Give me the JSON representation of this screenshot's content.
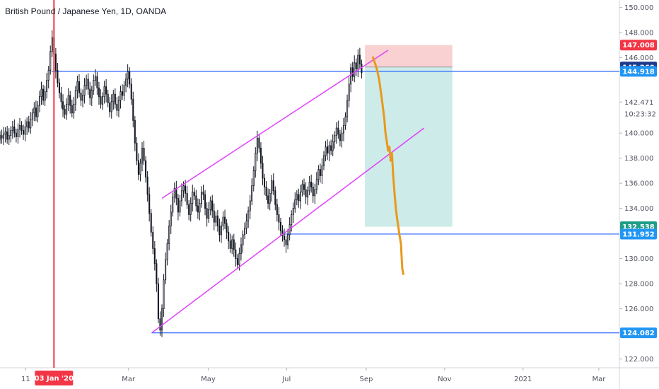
{
  "title": "British Pound / Japanese Yen, 1D, OANDA",
  "colors": {
    "up": "#131722",
    "projection": "#e8991c",
    "channel": "#e040fb",
    "level": "#2962ff",
    "cursor": "#f23645",
    "stop_zone": "#f9d1d2",
    "target_zone": "#cdebe8",
    "badge_blue": "#2196f3",
    "badge_navy": "#1e3a8a",
    "badge_green": "#1f9e89",
    "badge_red": "#f23645"
  },
  "chart_data": {
    "type": "candlestick",
    "ylim": [
      121.3,
      150.6
    ],
    "y_ticks": [
      "150.000",
      "148.000",
      "146.000",
      "142.471",
      "140.000",
      "138.000",
      "136.000",
      "134.000",
      "130.000",
      "128.000",
      "126.000",
      "122.000"
    ],
    "y_tick_values": [
      150,
      148,
      146,
      142.471,
      140,
      138,
      136,
      134,
      130,
      128,
      126,
      122
    ],
    "x_ticks": [
      "11",
      "Mar",
      "May",
      "Jul",
      "Sep",
      "Nov",
      "2021",
      "Mar"
    ],
    "x_tick_days": [
      -20,
      60,
      122,
      183,
      245,
      306,
      367,
      426
    ],
    "x_range_days": [
      -40,
      442
    ],
    "countdown": "10:23:32",
    "cursor": {
      "day": 2,
      "label": "03 Jan '20"
    },
    "price_labels": [
      {
        "value": 147.008,
        "label": "147.008",
        "kind": "red"
      },
      {
        "value": 145.26,
        "label": "145.260",
        "kind": "navy"
      },
      {
        "value": 144.918,
        "label": "144.918",
        "kind": "blue"
      },
      {
        "value": 132.538,
        "label": "132.538",
        "kind": "green"
      },
      {
        "value": 131.952,
        "label": "131.952",
        "kind": "blue"
      },
      {
        "value": 124.082,
        "label": "124.082",
        "kind": "blue"
      }
    ],
    "levels": [
      {
        "value": 144.918,
        "from_day": 0
      },
      {
        "value": 131.952,
        "from_day": 180
      },
      {
        "value": 124.082,
        "from_day": 78
      }
    ],
    "channel": {
      "upper": [
        [
          86,
          134.8
        ],
        [
          262,
          146.6
        ]
      ],
      "lower": [
        [
          78,
          124.08
        ],
        [
          290,
          140.4
        ]
      ]
    },
    "position": {
      "from_day": 244,
      "to_day": 312,
      "entry": 145.26,
      "stop": 147.008,
      "target": 132.538
    },
    "candles_start_day": -40,
    "closes": [
      139.8,
      139.6,
      139.9,
      140.1,
      139.5,
      139.8,
      140.2,
      140.5,
      140.0,
      139.7,
      140.3,
      140.6,
      140.2,
      139.9,
      140.5,
      140.9,
      140.4,
      141.1,
      141.6,
      142.0,
      141.3,
      142.2,
      142.9,
      143.5,
      142.6,
      143.3,
      144.2,
      145.0,
      146.5,
      147.6,
      146.3,
      145.0,
      144.0,
      143.2,
      142.5,
      141.9,
      141.5,
      142.3,
      143.0,
      142.2,
      141.6,
      142.3,
      143.4,
      144.1,
      143.2,
      142.6,
      143.0,
      143.8,
      144.3,
      143.5,
      142.8,
      143.4,
      144.2,
      144.5,
      143.6,
      142.9,
      142.3,
      142.9,
      143.7,
      143.1,
      142.4,
      141.7,
      142.5,
      143.1,
      142.3,
      141.8,
      142.6,
      143.3,
      143.0,
      143.8,
      144.3,
      144.9,
      143.9,
      142.7,
      141.0,
      139.2,
      137.8,
      136.7,
      137.6,
      138.8,
      137.8,
      136.5,
      135.1,
      133.6,
      132.1,
      130.8,
      129.6,
      128.0,
      125.2,
      124.3,
      126.0,
      128.3,
      129.9,
      131.2,
      132.6,
      133.7,
      134.9,
      135.6,
      134.8,
      133.7,
      134.6,
      135.4,
      135.8,
      135.2,
      134.3,
      133.5,
      134.4,
      135.3,
      135.0,
      134.2,
      133.7,
      134.4,
      135.3,
      135.1,
      134.0,
      133.2,
      133.9,
      134.6,
      133.8,
      132.9,
      133.4,
      132.6,
      131.9,
      132.6,
      133.3,
      132.8,
      132.1,
      131.4,
      130.8,
      131.5,
      130.7,
      130.0,
      129.5,
      130.4,
      131.1,
      131.9,
      132.4,
      133.0,
      133.8,
      134.6,
      135.8,
      137.0,
      138.4,
      139.6,
      138.8,
      137.6,
      136.4,
      135.7,
      135.0,
      134.4,
      135.2,
      136.2,
      135.4,
      134.3,
      133.5,
      132.9,
      132.2,
      131.8,
      131.5,
      131.1,
      131.9,
      132.7,
      133.5,
      134.0,
      134.7,
      135.1,
      134.6,
      135.3,
      135.9,
      135.5,
      134.9,
      135.4,
      136.1,
      135.7,
      135.0,
      135.5,
      136.3,
      137.1,
      136.6,
      137.4,
      138.2,
      138.9,
      138.4,
      139.0,
      138.6,
      139.3,
      139.8,
      140.4,
      139.9,
      139.4,
      140.0,
      140.6,
      141.3,
      142.6,
      143.9,
      145.2,
      144.5,
      145.6,
      145.1,
      146.2,
      145.5,
      144.8
    ],
    "projection": [
      [
        250,
        146.1
      ],
      [
        253,
        145.2
      ],
      [
        255,
        144.3
      ],
      [
        257,
        142.8
      ],
      [
        259,
        141.2
      ],
      [
        260,
        140.0
      ],
      [
        262,
        138.6
      ],
      [
        263,
        138.9
      ],
      [
        264,
        137.8
      ],
      [
        265,
        138.4
      ],
      [
        266,
        136.6
      ],
      [
        267,
        135.2
      ],
      [
        268,
        134.0
      ],
      [
        269,
        133.2
      ],
      [
        270,
        132.5
      ],
      [
        271,
        131.8
      ],
      [
        272,
        131.2
      ],
      [
        273,
        129.2
      ],
      [
        274,
        128.7
      ]
    ]
  }
}
